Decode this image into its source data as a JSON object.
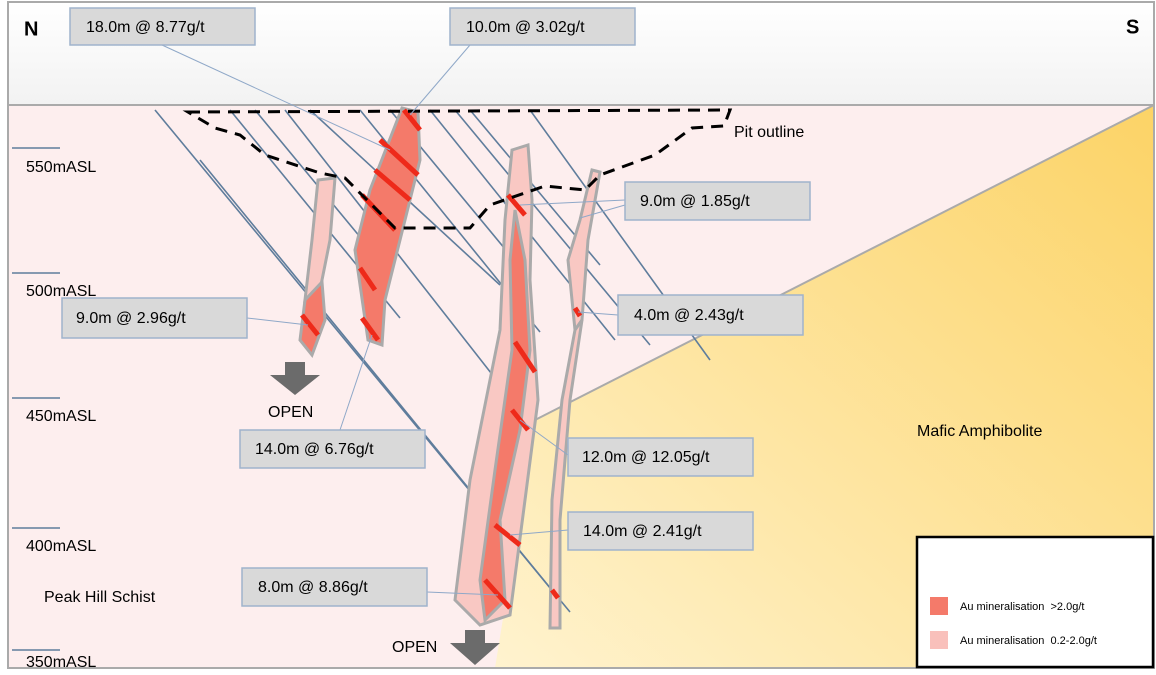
{
  "orientation": {
    "north": "N",
    "south": "S"
  },
  "elevations": [
    "550mASL",
    "500mASL",
    "450mASL",
    "400mASL",
    "350mASL"
  ],
  "intercepts": [
    "18.0m @ 8.77g/t",
    "10.0m @ 3.02g/t",
    "9.0m @ 1.85g/t",
    "9.0m @ 2.96g/t",
    "4.0m @ 2.43g/t",
    "14.0m @ 6.76g/t",
    "12.0m @ 12.05g/t",
    "14.0m @ 2.41g/t",
    "8.0m @ 8.86g/t"
  ],
  "pit_label": "Pit outline",
  "open_labels": [
    "OPEN",
    "OPEN"
  ],
  "units": [
    "Peak Hill Schist",
    "Mafic Amphibolite"
  ],
  "legend": {
    "items": [
      "Au mineralisation  >2.0g/t",
      "Au mineralisation  0.2-2.0g/t"
    ]
  }
}
